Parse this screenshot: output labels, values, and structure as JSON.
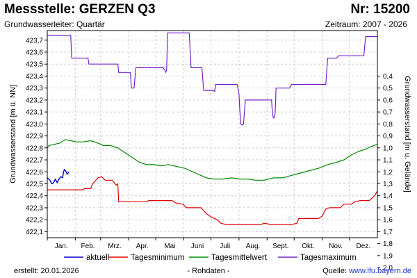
{
  "header": {
    "title": "Messstelle: GERZEN Q3",
    "number": "Nr: 15200",
    "aquifer": "Grundwasserleiter: Quartär",
    "period": "Zeitraum: 2007 - 2026"
  },
  "footer": {
    "created_label": "erstellt:",
    "created_date": "20.01.2026",
    "rawdata": "- Rohdaten -",
    "source_label": "Quelle:",
    "source_url": "www.lfu.bayern.de"
  },
  "chart_data": {
    "type": "line",
    "months": [
      "Jan.",
      "Feb.",
      "Mrz.",
      "Apr.",
      "Mai",
      "Juni",
      "Juli",
      "Aug.",
      "Sept.",
      "Okt.",
      "Nov.",
      "Dez."
    ],
    "ylabel_left": "Grundwasserstand [m ü. NN]",
    "ylabel_right": "Grundwasserstand [m u. Gelände]",
    "ylim_left": [
      422.05,
      423.78
    ],
    "yticks_left": [
      "422,1",
      "422,2",
      "422,3",
      "422,4",
      "422,5",
      "422,6",
      "422,7",
      "422,8",
      "422,9",
      "423,0",
      "423,1",
      "423,2",
      "423,3",
      "423,4",
      "423,5",
      "423,6",
      "423,7"
    ],
    "yticks_right": [
      "0,4",
      "0,5",
      "0,6",
      "0,7",
      "0,8",
      "0,9",
      "1,0",
      "1,1",
      "1,2",
      "1,3",
      "1,4",
      "1,5",
      "1,6",
      "1,7",
      "1,8",
      "1,9",
      "2,0"
    ],
    "grid": true,
    "legend_position": "bottom",
    "series": [
      {
        "name": "aktuell",
        "color": "#0000cc",
        "points": [
          [
            0.0,
            422.55
          ],
          [
            3.0,
            422.53
          ],
          [
            5.0,
            422.5
          ],
          [
            7.0,
            422.51
          ],
          [
            9.0,
            422.54
          ],
          [
            11.0,
            422.51
          ],
          [
            13.0,
            422.54
          ],
          [
            15.0,
            422.56
          ],
          [
            17.0,
            422.55
          ],
          [
            18.0,
            422.6
          ],
          [
            19.0,
            422.62
          ],
          [
            21.0,
            422.6
          ],
          [
            22.0,
            422.58
          ],
          [
            24.0,
            422.6
          ]
        ]
      },
      {
        "name": "Tagesminimum",
        "color": "#dd0000",
        "points": [
          [
            0.0,
            422.45
          ],
          [
            40.0,
            422.45
          ],
          [
            41.0,
            422.46
          ],
          [
            48.0,
            422.46
          ],
          [
            50.0,
            422.5
          ],
          [
            56.0,
            422.55
          ],
          [
            60.0,
            422.56
          ],
          [
            64.0,
            422.53
          ],
          [
            72.0,
            422.53
          ],
          [
            76.0,
            422.49
          ],
          [
            78.0,
            422.5
          ],
          [
            79.0,
            422.35
          ],
          [
            80.0,
            422.35
          ],
          [
            110.0,
            422.35
          ],
          [
            112.0,
            422.36
          ],
          [
            138.0,
            422.36
          ],
          [
            142.0,
            422.34
          ],
          [
            150.0,
            422.33
          ],
          [
            154.0,
            422.3
          ],
          [
            170.0,
            422.3
          ],
          [
            176.0,
            422.25
          ],
          [
            182.0,
            422.22
          ],
          [
            188.0,
            422.2
          ],
          [
            192.0,
            422.17
          ],
          [
            198.0,
            422.16
          ],
          [
            236.0,
            422.16
          ],
          [
            240.0,
            422.17
          ],
          [
            248.0,
            422.16
          ],
          [
            270.0,
            422.16
          ],
          [
            276.0,
            422.17
          ],
          [
            278.0,
            422.21
          ],
          [
            300.0,
            422.21
          ],
          [
            304.0,
            422.23
          ],
          [
            308.0,
            422.29
          ],
          [
            312.0,
            422.3
          ],
          [
            324.0,
            422.3
          ],
          [
            328.0,
            422.33
          ],
          [
            336.0,
            422.33
          ],
          [
            340.0,
            422.35
          ],
          [
            346.0,
            422.36
          ],
          [
            356.0,
            422.36
          ],
          [
            362.0,
            422.4
          ],
          [
            365.0,
            422.44
          ]
        ]
      },
      {
        "name": "Tagesmittelwert",
        "color": "#008800",
        "points": [
          [
            0.0,
            422.8
          ],
          [
            2.0,
            422.82
          ],
          [
            8.0,
            422.83
          ],
          [
            14.0,
            422.84
          ],
          [
            20.0,
            422.87
          ],
          [
            26.0,
            422.86
          ],
          [
            32.0,
            422.85
          ],
          [
            40.0,
            422.85
          ],
          [
            48.0,
            422.86
          ],
          [
            56.0,
            422.84
          ],
          [
            62.0,
            422.82
          ],
          [
            70.0,
            422.82
          ],
          [
            78.0,
            422.8
          ],
          [
            84.0,
            422.77
          ],
          [
            90.0,
            422.74
          ],
          [
            96.0,
            422.71
          ],
          [
            102.0,
            422.68
          ],
          [
            110.0,
            422.66
          ],
          [
            118.0,
            422.66
          ],
          [
            126.0,
            422.65
          ],
          [
            134.0,
            422.66
          ],
          [
            140.0,
            422.65
          ],
          [
            146.0,
            422.64
          ],
          [
            152.0,
            422.63
          ],
          [
            158.0,
            422.61
          ],
          [
            164.0,
            422.59
          ],
          [
            170.0,
            422.57
          ],
          [
            176.0,
            422.55
          ],
          [
            184.0,
            422.54
          ],
          [
            194.0,
            422.54
          ],
          [
            204.0,
            422.55
          ],
          [
            212.0,
            422.54
          ],
          [
            222.0,
            422.54
          ],
          [
            230.0,
            422.53
          ],
          [
            240.0,
            422.53
          ],
          [
            250.0,
            422.55
          ],
          [
            260.0,
            422.55
          ],
          [
            270.0,
            422.57
          ],
          [
            280.0,
            422.59
          ],
          [
            290.0,
            422.61
          ],
          [
            300.0,
            422.63
          ],
          [
            310.0,
            422.66
          ],
          [
            320.0,
            422.68
          ],
          [
            328.0,
            422.7
          ],
          [
            336.0,
            422.74
          ],
          [
            344.0,
            422.77
          ],
          [
            352.0,
            422.79
          ],
          [
            358.0,
            422.81
          ],
          [
            365.0,
            422.83
          ]
        ]
      },
      {
        "name": "Tagesmaximum",
        "color": "#7722cc",
        "points": [
          [
            0.0,
            423.74
          ],
          [
            26.0,
            423.74
          ],
          [
            27.0,
            423.55
          ],
          [
            45.0,
            423.55
          ],
          [
            46.0,
            423.5
          ],
          [
            78.0,
            423.5
          ],
          [
            79.0,
            423.43
          ],
          [
            92.0,
            423.43
          ],
          [
            93.0,
            423.3
          ],
          [
            96.0,
            423.3
          ],
          [
            98.0,
            423.47
          ],
          [
            128.0,
            423.47
          ],
          [
            130.0,
            423.45
          ],
          [
            131.0,
            423.43
          ],
          [
            132.0,
            423.45
          ],
          [
            133.0,
            423.76
          ],
          [
            157.0,
            423.76
          ],
          [
            159.0,
            423.47
          ],
          [
            171.0,
            423.47
          ],
          [
            173.0,
            423.28
          ],
          [
            184.0,
            423.28
          ],
          [
            185.0,
            423.27
          ],
          [
            186.0,
            423.33
          ],
          [
            210.0,
            423.33
          ],
          [
            212.0,
            423.25
          ],
          [
            213.0,
            423.1
          ],
          [
            214.0,
            423.0
          ],
          [
            216.0,
            422.99
          ],
          [
            217.0,
            423.0
          ],
          [
            219.0,
            423.2
          ],
          [
            248.0,
            423.2
          ],
          [
            249.0,
            423.09
          ],
          [
            250.0,
            423.05
          ],
          [
            251.0,
            423.05
          ],
          [
            252.0,
            423.09
          ],
          [
            253.0,
            423.3
          ],
          [
            268.0,
            423.3
          ],
          [
            270.0,
            423.33
          ],
          [
            308.0,
            423.33
          ],
          [
            310.0,
            423.55
          ],
          [
            320.0,
            423.55
          ],
          [
            322.0,
            423.57
          ],
          [
            330.0,
            423.57
          ],
          [
            350.0,
            423.57
          ],
          [
            352.0,
            423.73
          ],
          [
            365.0,
            423.73
          ]
        ]
      }
    ]
  }
}
